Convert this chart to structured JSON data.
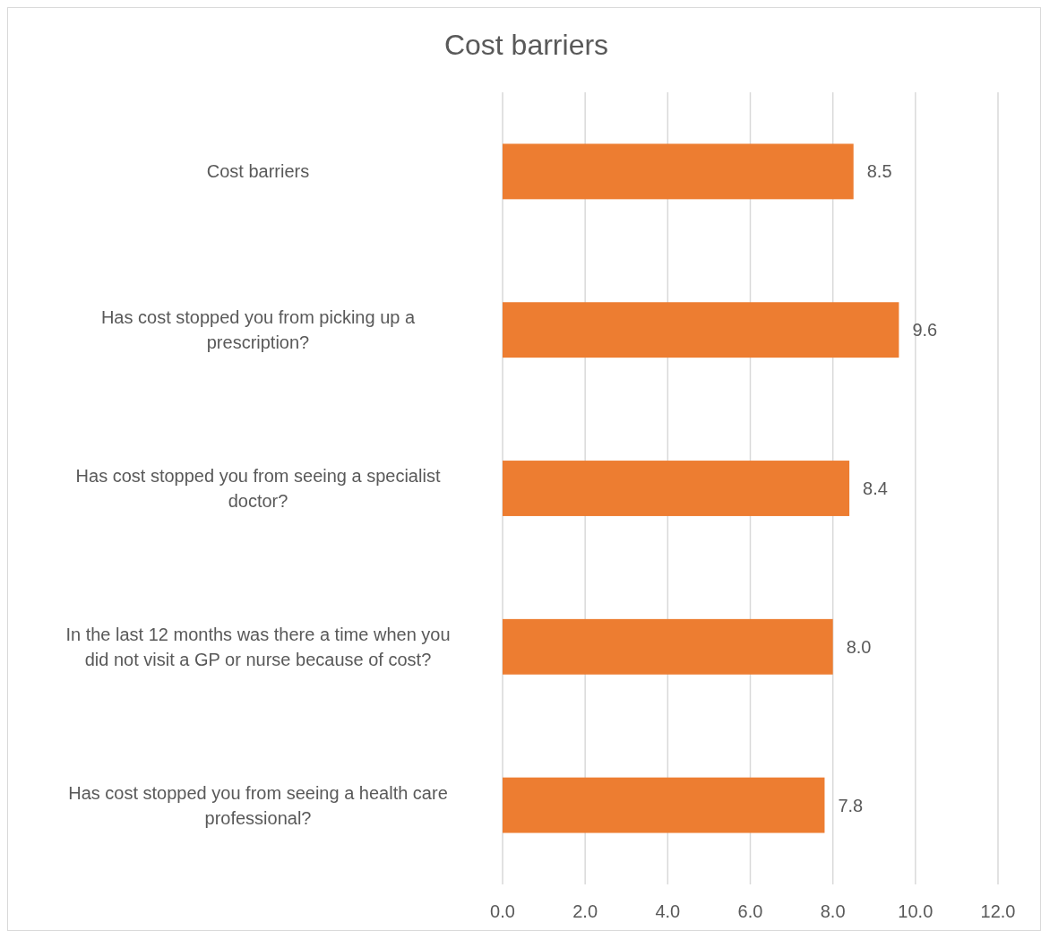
{
  "chart_data": {
    "type": "bar",
    "orientation": "horizontal",
    "title": "Cost barriers",
    "categories": [
      "Cost barriers",
      "Has cost stopped you from picking up a prescription?",
      "Has cost stopped you from seeing a specialist doctor?",
      "In the last 12 months was there a time when you did not visit a GP or nurse because of cost?",
      "Has cost stopped you from seeing a health care professional?"
    ],
    "values": [
      8.5,
      9.6,
      8.4,
      8.0,
      7.8
    ],
    "value_labels": [
      "8.5",
      "9.6",
      "8.4",
      "8.0",
      "7.8"
    ],
    "color": "#ed7d31",
    "xlim": [
      0,
      12
    ],
    "xticks": [
      {
        "value": 0,
        "label": "0.0"
      },
      {
        "value": 2,
        "label": "2.0"
      },
      {
        "value": 4,
        "label": "4.0"
      },
      {
        "value": 6,
        "label": "6.0"
      },
      {
        "value": 8,
        "label": "8.0"
      },
      {
        "value": 10,
        "label": "10.0"
      },
      {
        "value": 12,
        "label": "12.0"
      }
    ],
    "grid": "x"
  }
}
